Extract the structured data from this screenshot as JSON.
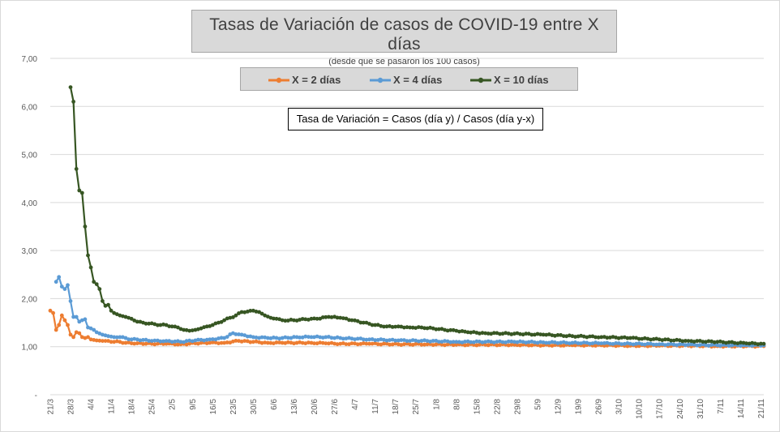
{
  "chart_data": {
    "type": "line",
    "title": "Tasas de Variación de casos de COVID-19 entre X días",
    "subtitle": "(desde que se pasaron los 100 casos)",
    "annotation": "Tasa de Variación = Casos (día y) / Casos (día y-x)",
    "xlabel": "",
    "ylabel": "",
    "ylim": [
      0,
      7
    ],
    "yticks": [
      "-",
      "1,00",
      "2,00",
      "3,00",
      "4,00",
      "5,00",
      "6,00",
      "7,00"
    ],
    "xticks": [
      "21/3",
      "28/3",
      "4/4",
      "11/4",
      "18/4",
      "25/4",
      "2/5",
      "9/5",
      "16/5",
      "23/5",
      "30/5",
      "6/6",
      "13/6",
      "20/6",
      "27/6",
      "4/7",
      "11/7",
      "18/7",
      "25/7",
      "1/8",
      "8/8",
      "15/8",
      "22/8",
      "29/8",
      "5/9",
      "12/9",
      "19/9",
      "26/9",
      "3/10",
      "10/10",
      "17/10",
      "24/10",
      "31/10",
      "7/11",
      "14/11",
      "21/11"
    ],
    "x_start": "21/3",
    "x_end": "22/11",
    "grid": "horizontal",
    "legend_position": "top",
    "series": [
      {
        "name": "X = 2 días",
        "color": "#ed7d31",
        "start_day": 0,
        "keypoints": [
          [
            0,
            1.75
          ],
          [
            1,
            1.7
          ],
          [
            2,
            1.35
          ],
          [
            3,
            1.45
          ],
          [
            4,
            1.65
          ],
          [
            5,
            1.55
          ],
          [
            6,
            1.45
          ],
          [
            7,
            1.25
          ],
          [
            8,
            1.2
          ],
          [
            9,
            1.3
          ],
          [
            10,
            1.28
          ],
          [
            11,
            1.2
          ],
          [
            12,
            1.18
          ],
          [
            13,
            1.2
          ],
          [
            14,
            1.15
          ],
          [
            16,
            1.13
          ],
          [
            18,
            1.12
          ],
          [
            20,
            1.12
          ],
          [
            22,
            1.1
          ],
          [
            24,
            1.1
          ],
          [
            26,
            1.08
          ],
          [
            30,
            1.07
          ],
          [
            35,
            1.06
          ],
          [
            40,
            1.06
          ],
          [
            45,
            1.05
          ],
          [
            50,
            1.07
          ],
          [
            55,
            1.08
          ],
          [
            60,
            1.08
          ],
          [
            65,
            1.12
          ],
          [
            70,
            1.1
          ],
          [
            75,
            1.08
          ],
          [
            80,
            1.08
          ],
          [
            85,
            1.08
          ],
          [
            90,
            1.08
          ],
          [
            95,
            1.07
          ],
          [
            100,
            1.06
          ],
          [
            110,
            1.06
          ],
          [
            120,
            1.05
          ],
          [
            130,
            1.05
          ],
          [
            140,
            1.04
          ],
          [
            150,
            1.04
          ],
          [
            160,
            1.04
          ],
          [
            170,
            1.03
          ],
          [
            180,
            1.03
          ],
          [
            190,
            1.03
          ],
          [
            200,
            1.02
          ],
          [
            210,
            1.02
          ],
          [
            220,
            1.02
          ],
          [
            230,
            1.01
          ],
          [
            240,
            1.01
          ],
          [
            246,
            1.01
          ]
        ]
      },
      {
        "name": "X = 4 días",
        "color": "#5b9bd5",
        "start_day": 2,
        "keypoints": [
          [
            2,
            2.35
          ],
          [
            3,
            2.45
          ],
          [
            4,
            2.25
          ],
          [
            5,
            2.2
          ],
          [
            6,
            2.28
          ],
          [
            7,
            1.95
          ],
          [
            8,
            1.62
          ],
          [
            9,
            1.62
          ],
          [
            10,
            1.52
          ],
          [
            11,
            1.55
          ],
          [
            12,
            1.57
          ],
          [
            13,
            1.4
          ],
          [
            14,
            1.38
          ],
          [
            15,
            1.35
          ],
          [
            16,
            1.3
          ],
          [
            18,
            1.25
          ],
          [
            20,
            1.22
          ],
          [
            22,
            1.2
          ],
          [
            24,
            1.2
          ],
          [
            26,
            1.18
          ],
          [
            28,
            1.15
          ],
          [
            30,
            1.15
          ],
          [
            35,
            1.12
          ],
          [
            40,
            1.12
          ],
          [
            45,
            1.1
          ],
          [
            50,
            1.13
          ],
          [
            55,
            1.15
          ],
          [
            60,
            1.18
          ],
          [
            63,
            1.28
          ],
          [
            66,
            1.25
          ],
          [
            70,
            1.2
          ],
          [
            75,
            1.18
          ],
          [
            80,
            1.18
          ],
          [
            85,
            1.2
          ],
          [
            90,
            1.2
          ],
          [
            95,
            1.2
          ],
          [
            100,
            1.18
          ],
          [
            110,
            1.15
          ],
          [
            120,
            1.13
          ],
          [
            130,
            1.12
          ],
          [
            140,
            1.1
          ],
          [
            150,
            1.1
          ],
          [
            160,
            1.1
          ],
          [
            170,
            1.09
          ],
          [
            180,
            1.08
          ],
          [
            190,
            1.07
          ],
          [
            200,
            1.06
          ],
          [
            210,
            1.05
          ],
          [
            220,
            1.04
          ],
          [
            230,
            1.03
          ],
          [
            240,
            1.03
          ],
          [
            246,
            1.03
          ]
        ]
      },
      {
        "name": "X = 10 días",
        "color": "#375623",
        "start_day": 7,
        "keypoints": [
          [
            7,
            6.4
          ],
          [
            8,
            6.1
          ],
          [
            9,
            4.7
          ],
          [
            10,
            4.25
          ],
          [
            11,
            4.2
          ],
          [
            12,
            3.5
          ],
          [
            13,
            2.9
          ],
          [
            14,
            2.65
          ],
          [
            15,
            2.35
          ],
          [
            16,
            2.3
          ],
          [
            17,
            2.2
          ],
          [
            18,
            1.95
          ],
          [
            19,
            1.85
          ],
          [
            20,
            1.87
          ],
          [
            21,
            1.75
          ],
          [
            22,
            1.7
          ],
          [
            24,
            1.65
          ],
          [
            26,
            1.62
          ],
          [
            28,
            1.58
          ],
          [
            30,
            1.52
          ],
          [
            32,
            1.5
          ],
          [
            34,
            1.48
          ],
          [
            36,
            1.47
          ],
          [
            38,
            1.45
          ],
          [
            40,
            1.45
          ],
          [
            42,
            1.42
          ],
          [
            44,
            1.4
          ],
          [
            46,
            1.35
          ],
          [
            48,
            1.33
          ],
          [
            50,
            1.35
          ],
          [
            52,
            1.38
          ],
          [
            54,
            1.42
          ],
          [
            56,
            1.45
          ],
          [
            58,
            1.5
          ],
          [
            60,
            1.55
          ],
          [
            62,
            1.6
          ],
          [
            64,
            1.65
          ],
          [
            66,
            1.72
          ],
          [
            68,
            1.73
          ],
          [
            70,
            1.75
          ],
          [
            72,
            1.72
          ],
          [
            74,
            1.65
          ],
          [
            76,
            1.6
          ],
          [
            78,
            1.58
          ],
          [
            80,
            1.55
          ],
          [
            84,
            1.55
          ],
          [
            88,
            1.57
          ],
          [
            92,
            1.58
          ],
          [
            96,
            1.62
          ],
          [
            100,
            1.6
          ],
          [
            104,
            1.55
          ],
          [
            108,
            1.5
          ],
          [
            112,
            1.45
          ],
          [
            116,
            1.42
          ],
          [
            120,
            1.42
          ],
          [
            124,
            1.4
          ],
          [
            128,
            1.4
          ],
          [
            132,
            1.38
          ],
          [
            136,
            1.35
          ],
          [
            140,
            1.33
          ],
          [
            144,
            1.3
          ],
          [
            150,
            1.28
          ],
          [
            160,
            1.27
          ],
          [
            170,
            1.25
          ],
          [
            180,
            1.22
          ],
          [
            190,
            1.2
          ],
          [
            200,
            1.18
          ],
          [
            210,
            1.15
          ],
          [
            220,
            1.12
          ],
          [
            230,
            1.1
          ],
          [
            240,
            1.07
          ],
          [
            246,
            1.06
          ]
        ]
      }
    ]
  }
}
